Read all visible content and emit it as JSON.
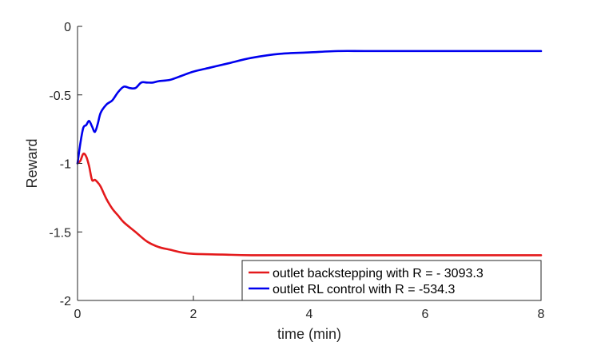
{
  "chart_data": {
    "type": "line",
    "title": "",
    "xlabel": "time (min)",
    "ylabel": "Reward",
    "xlim": [
      0,
      8
    ],
    "ylim": [
      -2,
      0
    ],
    "xticks": [
      0,
      2,
      4,
      6,
      8
    ],
    "xtick_labels": [
      "0",
      "2",
      "4",
      "6",
      "8"
    ],
    "yticks": [
      0,
      -0.5,
      -1,
      -1.5,
      -2
    ],
    "ytick_labels": [
      "0",
      "-0.5",
      "-1",
      "-1.5",
      "-2"
    ],
    "grid": false,
    "legend_position": "bottom-right",
    "series": [
      {
        "name": "outlet backstepping with R = - 3093.3",
        "color": "#e41a1c",
        "x": [
          0,
          0.05,
          0.1,
          0.15,
          0.2,
          0.25,
          0.3,
          0.35,
          0.4,
          0.5,
          0.6,
          0.7,
          0.8,
          1.0,
          1.2,
          1.4,
          1.6,
          1.8,
          2.0,
          2.5,
          3.0,
          4.0,
          5.0,
          6.0,
          7.0,
          8.0
        ],
        "y": [
          -1.0,
          -0.98,
          -0.93,
          -0.95,
          -1.02,
          -1.12,
          -1.12,
          -1.14,
          -1.17,
          -1.26,
          -1.33,
          -1.38,
          -1.43,
          -1.5,
          -1.57,
          -1.61,
          -1.63,
          -1.65,
          -1.66,
          -1.665,
          -1.67,
          -1.67,
          -1.67,
          -1.67,
          -1.67,
          -1.67
        ]
      },
      {
        "name": "outlet RL control with R = -534.3",
        "color": "#0000ee",
        "x": [
          0,
          0.05,
          0.1,
          0.15,
          0.2,
          0.25,
          0.3,
          0.35,
          0.4,
          0.5,
          0.6,
          0.7,
          0.8,
          0.9,
          1.0,
          1.1,
          1.2,
          1.3,
          1.4,
          1.6,
          1.8,
          2.0,
          2.3,
          2.6,
          3.0,
          3.5,
          4.0,
          4.5,
          5.0,
          6.0,
          7.0,
          8.0
        ],
        "y": [
          -1.0,
          -0.85,
          -0.74,
          -0.72,
          -0.69,
          -0.73,
          -0.77,
          -0.71,
          -0.63,
          -0.57,
          -0.54,
          -0.48,
          -0.44,
          -0.45,
          -0.45,
          -0.41,
          -0.41,
          -0.41,
          -0.4,
          -0.39,
          -0.36,
          -0.33,
          -0.3,
          -0.27,
          -0.23,
          -0.2,
          -0.19,
          -0.18,
          -0.18,
          -0.18,
          -0.18,
          -0.18
        ]
      }
    ]
  }
}
